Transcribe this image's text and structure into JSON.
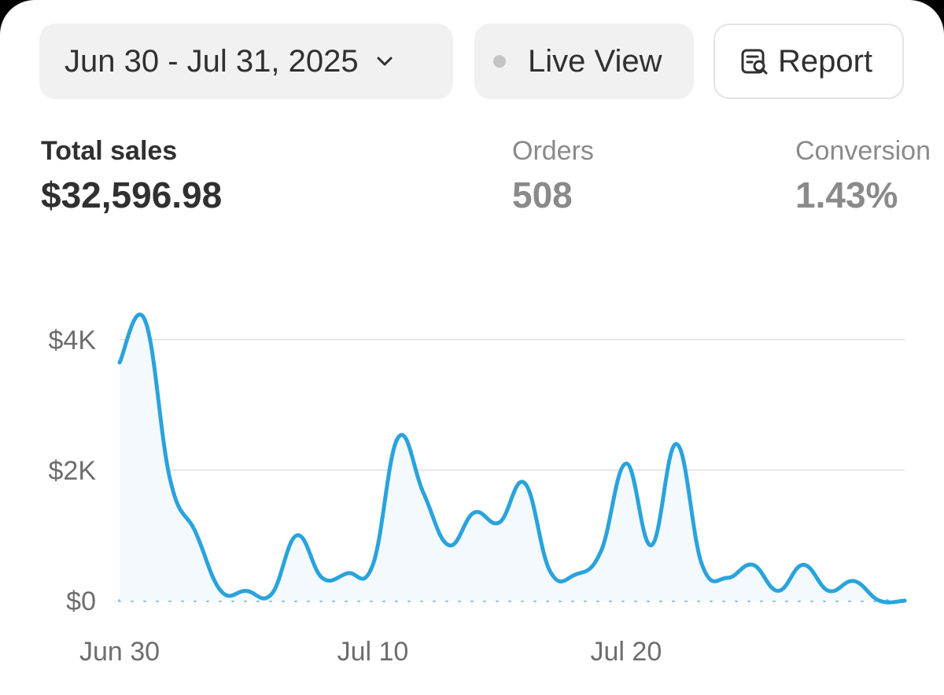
{
  "toolbar": {
    "date_range_label": "Jun 30 - Jul 31, 2025",
    "live_view_label": "Live View",
    "report_label": "Report"
  },
  "metrics": [
    {
      "label": "Total sales",
      "value": "$32,596.98"
    },
    {
      "label": "Orders",
      "value": "508"
    },
    {
      "label": "Conversion",
      "value": "1.43%"
    }
  ],
  "colors": {
    "line": "#2aa3dc",
    "baseline": "#7fbfd6",
    "grid": "#e6e6e6"
  },
  "chart_data": {
    "type": "line",
    "title": "",
    "xlabel": "",
    "ylabel": "",
    "x_tick_labels": [
      "Jun 30",
      "Jul 10",
      "Jul 20"
    ],
    "y_tick_labels": [
      "$0",
      "$2K",
      "$4K"
    ],
    "y_ticks": [
      0,
      2000,
      4000
    ],
    "ylim": [
      0,
      4500
    ],
    "grid": true,
    "categories": [
      "Jun 30",
      "Jul 1",
      "Jul 2",
      "Jul 3",
      "Jul 4",
      "Jul 5",
      "Jul 6",
      "Jul 7",
      "Jul 8",
      "Jul 9",
      "Jul 10",
      "Jul 11",
      "Jul 12",
      "Jul 13",
      "Jul 14",
      "Jul 15",
      "Jul 16",
      "Jul 17",
      "Jul 18",
      "Jul 19",
      "Jul 20",
      "Jul 21",
      "Jul 22",
      "Jul 23",
      "Jul 24",
      "Jul 25",
      "Jul 26",
      "Jul 27",
      "Jul 28",
      "Jul 29",
      "Jul 30",
      "Jul 31"
    ],
    "series": [
      {
        "values": [
          3650,
          4300,
          1850,
          1050,
          150,
          150,
          100,
          1000,
          350,
          420,
          550,
          2500,
          1650,
          850,
          1350,
          1200,
          1800,
          450,
          400,
          750,
          2100,
          850,
          2400,
          550,
          350,
          550,
          150,
          550,
          150,
          300,
          0,
          0
        ],
        "baseline": 0
      }
    ]
  }
}
